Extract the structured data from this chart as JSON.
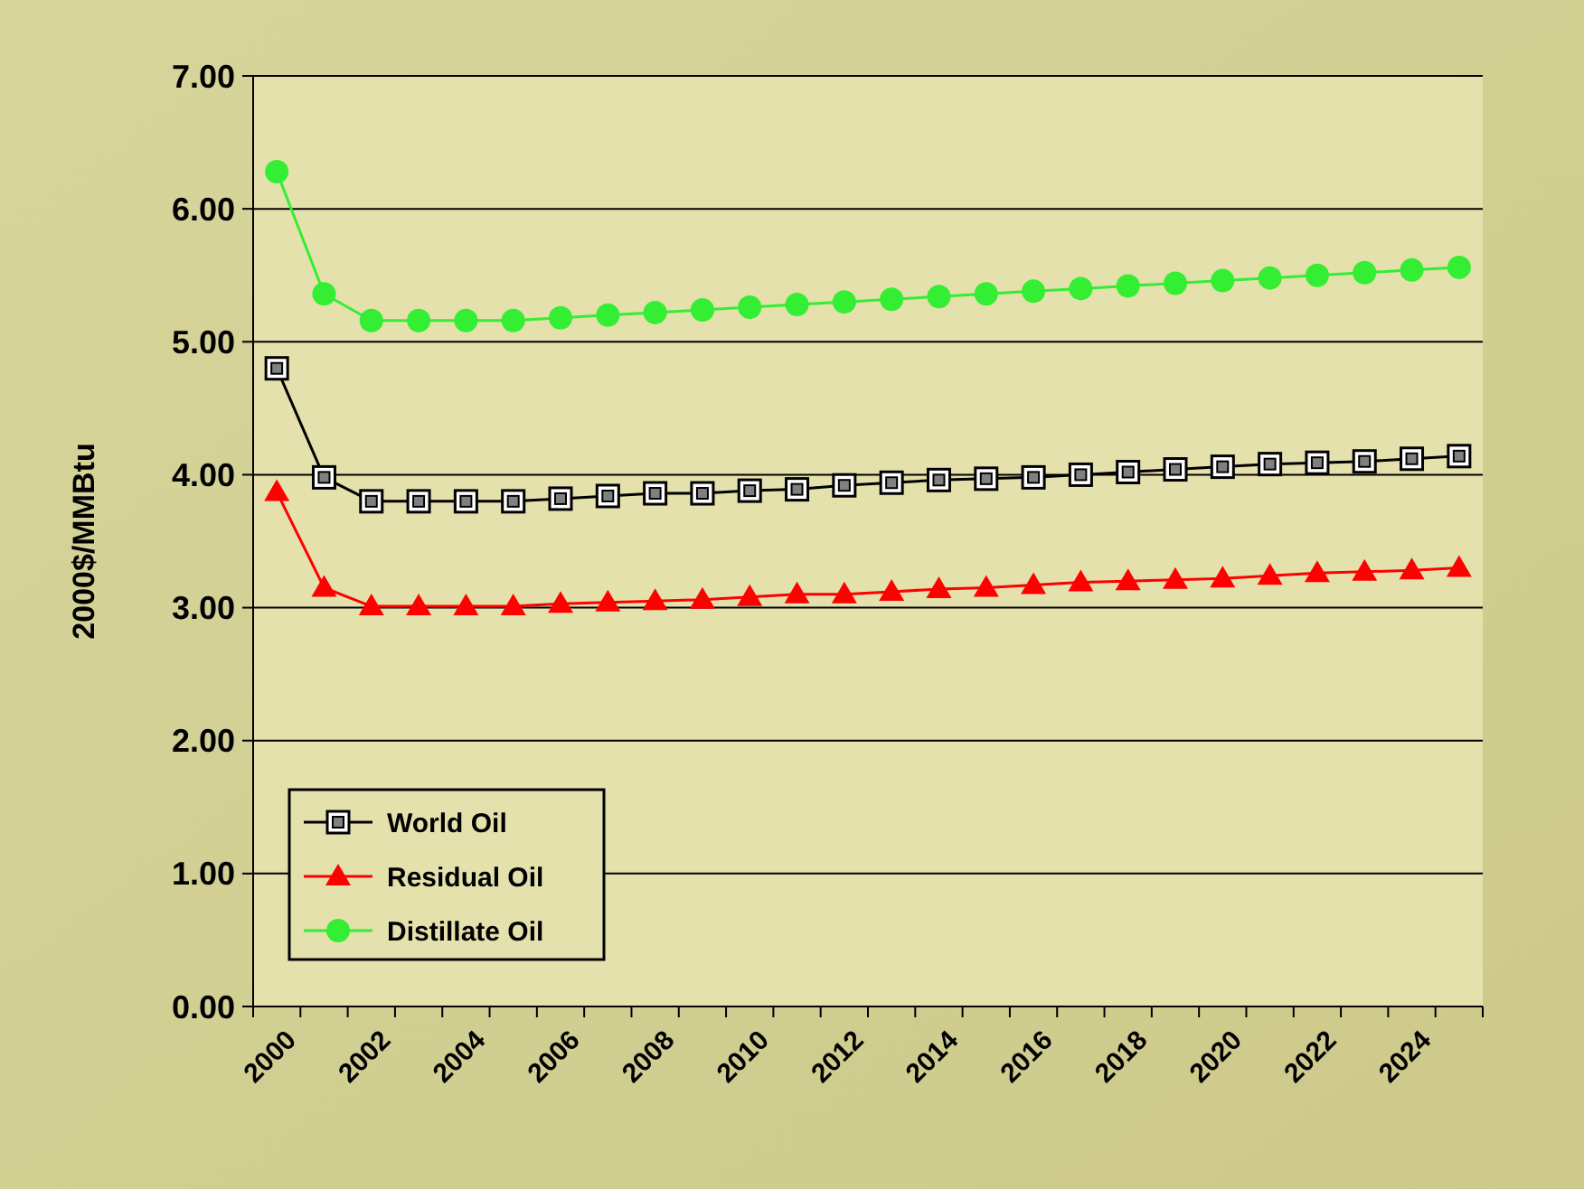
{
  "chart_data": {
    "type": "line",
    "ylabel": "2000$/MMBtu",
    "categories": [
      "2000",
      null,
      "2002",
      null,
      "2004",
      null,
      "2006",
      null,
      "2008",
      null,
      "2010",
      null,
      "2012",
      null,
      "2014",
      null,
      "2016",
      null,
      "2018",
      null,
      "2020",
      null,
      "2022",
      null,
      "2024",
      null
    ],
    "series": [
      {
        "name": "World Oil",
        "color": "#000000",
        "marker": "square",
        "values": [
          4.8,
          3.98,
          3.8,
          3.8,
          3.8,
          3.8,
          3.82,
          3.84,
          3.86,
          3.86,
          3.88,
          3.89,
          3.92,
          3.94,
          3.96,
          3.97,
          3.98,
          4.0,
          4.02,
          4.04,
          4.06,
          4.08,
          4.09,
          4.1,
          4.12,
          4.14
        ]
      },
      {
        "name": "Residual Oil",
        "color": "#ff0000",
        "marker": "triangle",
        "values": [
          3.87,
          3.15,
          3.01,
          3.01,
          3.01,
          3.01,
          3.03,
          3.04,
          3.05,
          3.06,
          3.08,
          3.1,
          3.1,
          3.12,
          3.14,
          3.15,
          3.17,
          3.19,
          3.2,
          3.21,
          3.22,
          3.24,
          3.26,
          3.27,
          3.28,
          3.3
        ]
      },
      {
        "name": "Distillate Oil",
        "color": "#33ee33",
        "marker": "circle",
        "values": [
          6.28,
          5.36,
          5.16,
          5.16,
          5.16,
          5.16,
          5.18,
          5.2,
          5.22,
          5.24,
          5.26,
          5.28,
          5.3,
          5.32,
          5.34,
          5.36,
          5.38,
          5.4,
          5.42,
          5.44,
          5.46,
          5.48,
          5.5,
          5.52,
          5.54,
          5.56
        ]
      }
    ],
    "ylim": [
      0,
      7
    ],
    "yticks": [
      {
        "value": 0,
        "label": "0.00"
      },
      {
        "value": 1,
        "label": "1.00"
      },
      {
        "value": 2,
        "label": "2.00"
      },
      {
        "value": 3,
        "label": "3.00"
      },
      {
        "value": 4,
        "label": "4.00"
      },
      {
        "value": 5,
        "label": "5.00"
      },
      {
        "value": 6,
        "label": "6.00"
      },
      {
        "value": 7,
        "label": "7.00"
      }
    ],
    "grid": "y",
    "legend": "bottom left"
  }
}
